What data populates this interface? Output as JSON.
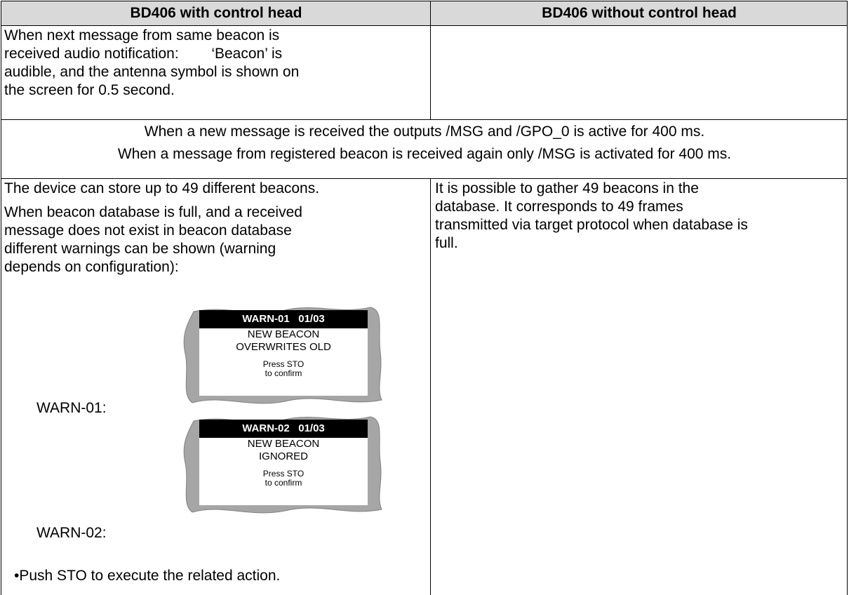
{
  "header": [
    "BD406 with control head",
    "BD406 without control head"
  ],
  "row1": {
    "left": [
      "When next message from same beacon is",
      "received audio notification:        ‘Beacon’ is",
      "audible, and the antenna symbol is shown on",
      "the screen for 0.5 second."
    ]
  },
  "shared": [
    "When a new message is received the outputs /MSG and /GPO_0 is active for 400 ms.",
    "When a message from registered beacon is received again only /MSG is activated for 400 ms."
  ],
  "row3": {
    "left": {
      "intro": "The device can store up to 49 different beacons.",
      "paragraph": [
        "When beacon database is full, and a received",
        "message does not exist in beacon database",
        "different warnings can be shown (warning",
        "depends on configuration):"
      ],
      "warnings": [
        {
          "label": "WARN-01:",
          "screen": {
            "title": "WARN-01   01/03",
            "message": [
              "NEW BEACON",
              "OVERWRITES OLD"
            ],
            "prompt": [
              "Press STO",
              "to confirm"
            ]
          }
        },
        {
          "label": "WARN-02:",
          "screen": {
            "title": "WARN-02   01/03",
            "message": [
              "NEW BEACON",
              "IGNORED"
            ],
            "prompt": [
              "Press STO",
              "to confirm"
            ]
          }
        }
      ],
      "bullet": "Push STO to execute the related action."
    },
    "right": [
      "It is possible to gather 49 beacons in the",
      "database. It corresponds to 49 frames",
      "transmitted via target protocol when database is",
      "full."
    ]
  }
}
